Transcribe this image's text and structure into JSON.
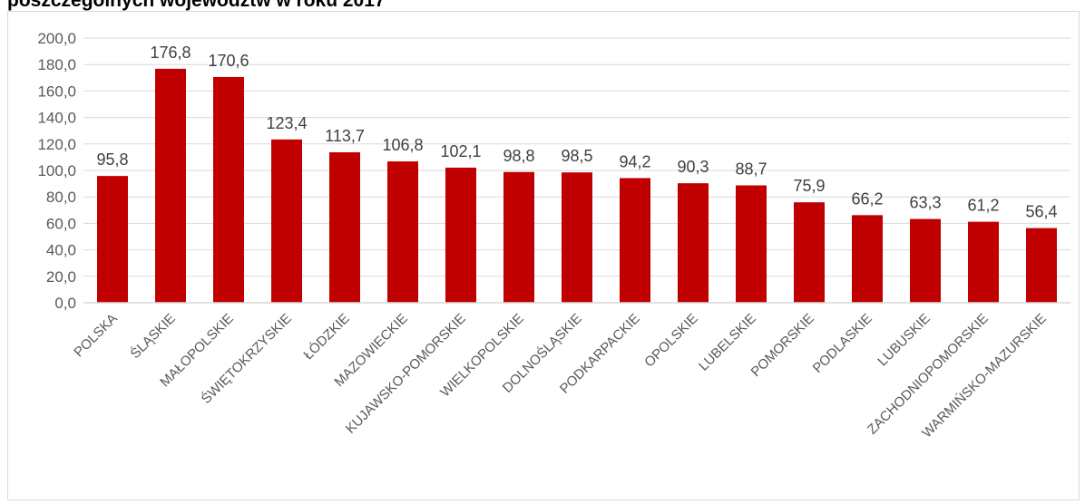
{
  "title": "poszczególnych województw w roku 2017",
  "chart_data": {
    "type": "bar",
    "categories": [
      "POLSKA",
      "ŚLĄSKIE",
      "MAŁOPOLSKIE",
      "ŚWIĘTOKRZYSKIE",
      "ŁÓDZKIE",
      "MAZOWIECKIE",
      "KUJAWSKO-POMORSKIE",
      "WIELKOPOLSKIE",
      "DOLNOŚLĄSKIE",
      "PODKARPACKIE",
      "OPOLSKIE",
      "LUBELSKIE",
      "POMORSKIE",
      "PODLASKIE",
      "LUBUSKIE",
      "ZACHODNIOPOMORSKIE",
      "WARMIŃSKO-MAZURSKIE"
    ],
    "values": [
      95.8,
      176.8,
      170.6,
      123.4,
      113.7,
      106.8,
      102.1,
      98.8,
      98.5,
      94.2,
      90.3,
      88.7,
      75.9,
      66.2,
      63.3,
      61.2,
      56.4
    ],
    "value_labels": [
      "95,8",
      "176,8",
      "170,6",
      "123,4",
      "113,7",
      "106,8",
      "102,1",
      "98,8",
      "98,5",
      "94,2",
      "90,3",
      "88,7",
      "75,9",
      "66,2",
      "63,3",
      "61,2",
      "56,4"
    ],
    "y_ticks": [
      "0,0",
      "20,0",
      "40,0",
      "60,0",
      "80,0",
      "100,0",
      "120,0",
      "140,0",
      "160,0",
      "180,0",
      "200,0"
    ],
    "ylim": [
      0,
      200
    ],
    "grid": true,
    "bar_color": "#c00000",
    "gridline_color": "#d9d9d9"
  }
}
